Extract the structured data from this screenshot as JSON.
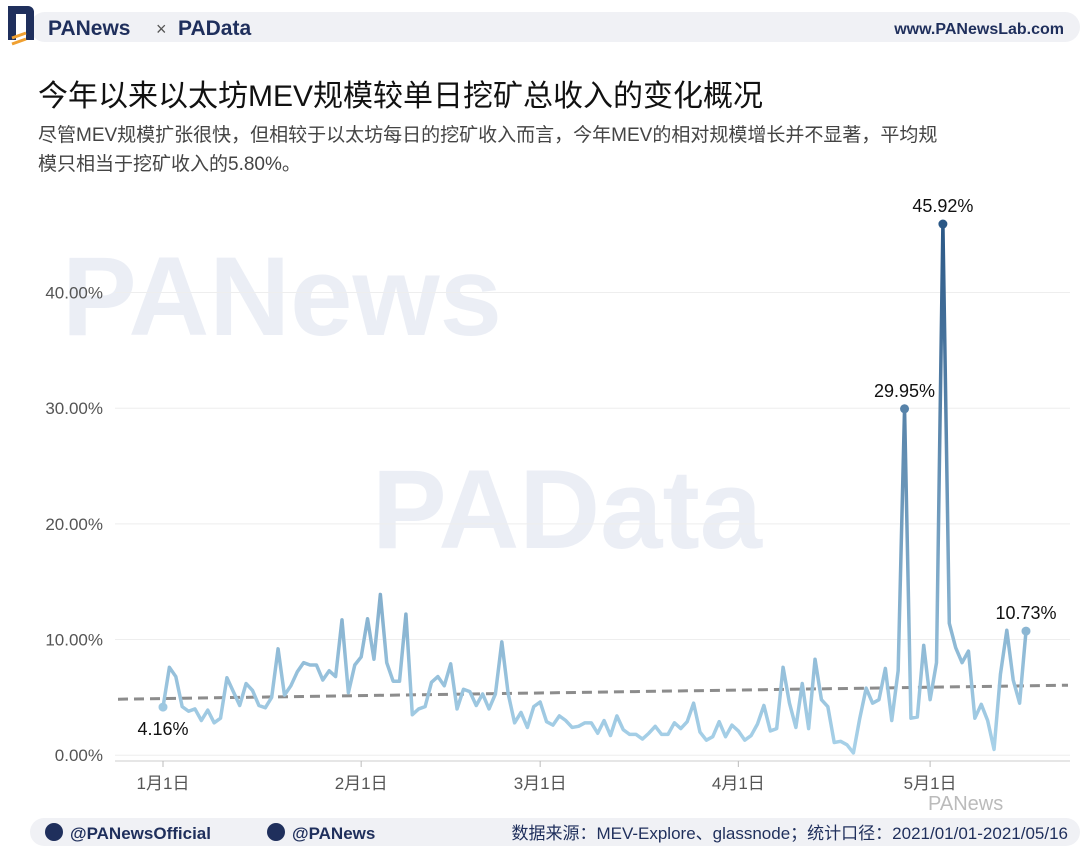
{
  "header": {
    "brand_a": "PANews",
    "times": "×",
    "brand_b": "PAData",
    "website": "www.PANewsLab.com"
  },
  "chart_data": {
    "type": "line",
    "title": "今年以来以太坊MEV规模较单日挖矿总收入的变化概况",
    "subtitle": [
      "尽管MEV规模扩张很快，但相较于以太坊每日的挖矿收入而言，今年MEV的相对规模增长并不显著，平均规",
      "模只相当于挖矿收入的5.80%。"
    ],
    "x": [
      "2021-01-01",
      "2021-01-02",
      "2021-01-03",
      "2021-01-04",
      "2021-01-05",
      "2021-01-06",
      "2021-01-07",
      "2021-01-08",
      "2021-01-09",
      "2021-01-10",
      "2021-01-11",
      "2021-01-12",
      "2021-01-13",
      "2021-01-14",
      "2021-01-15",
      "2021-01-16",
      "2021-01-17",
      "2021-01-18",
      "2021-01-19",
      "2021-01-20",
      "2021-01-21",
      "2021-01-22",
      "2021-01-23",
      "2021-01-24",
      "2021-01-25",
      "2021-01-26",
      "2021-01-27",
      "2021-01-28",
      "2021-01-29",
      "2021-01-30",
      "2021-01-31",
      "2021-02-01",
      "2021-02-02",
      "2021-02-03",
      "2021-02-04",
      "2021-02-05",
      "2021-02-06",
      "2021-02-07",
      "2021-02-08",
      "2021-02-09",
      "2021-02-10",
      "2021-02-11",
      "2021-02-12",
      "2021-02-13",
      "2021-02-14",
      "2021-02-15",
      "2021-02-16",
      "2021-02-17",
      "2021-02-18",
      "2021-02-19",
      "2021-02-20",
      "2021-02-21",
      "2021-02-22",
      "2021-02-23",
      "2021-02-24",
      "2021-02-25",
      "2021-02-26",
      "2021-02-27",
      "2021-02-28",
      "2021-03-01",
      "2021-03-02",
      "2021-03-03",
      "2021-03-04",
      "2021-03-05",
      "2021-03-06",
      "2021-03-07",
      "2021-03-08",
      "2021-03-09",
      "2021-03-10",
      "2021-03-11",
      "2021-03-12",
      "2021-03-13",
      "2021-03-14",
      "2021-03-15",
      "2021-03-16",
      "2021-03-17",
      "2021-03-18",
      "2021-03-19",
      "2021-03-20",
      "2021-03-21",
      "2021-03-22",
      "2021-03-23",
      "2021-03-24",
      "2021-03-25",
      "2021-03-26",
      "2021-03-27",
      "2021-03-28",
      "2021-03-29",
      "2021-03-30",
      "2021-03-31",
      "2021-04-01",
      "2021-04-02",
      "2021-04-03",
      "2021-04-04",
      "2021-04-05",
      "2021-04-06",
      "2021-04-07",
      "2021-04-08",
      "2021-04-09",
      "2021-04-10",
      "2021-04-11",
      "2021-04-12",
      "2021-04-13",
      "2021-04-14",
      "2021-04-15",
      "2021-04-16",
      "2021-04-17",
      "2021-04-18",
      "2021-04-19",
      "2021-04-20",
      "2021-04-21",
      "2021-04-22",
      "2021-04-23",
      "2021-04-24",
      "2021-04-25",
      "2021-04-26",
      "2021-04-27",
      "2021-04-28",
      "2021-04-29",
      "2021-04-30",
      "2021-05-01",
      "2021-05-02",
      "2021-05-03",
      "2021-05-04",
      "2021-05-05",
      "2021-05-06",
      "2021-05-07",
      "2021-05-08",
      "2021-05-09",
      "2021-05-10",
      "2021-05-11",
      "2021-05-12",
      "2021-05-13",
      "2021-05-14",
      "2021-05-15",
      "2021-05-16"
    ],
    "values": [
      4.16,
      7.6,
      6.8,
      4.2,
      3.8,
      4.0,
      3.0,
      3.9,
      2.8,
      3.2,
      6.7,
      5.5,
      4.3,
      6.2,
      5.6,
      4.3,
      4.1,
      5.0,
      9.2,
      5.2,
      6.0,
      7.2,
      8.0,
      7.8,
      7.8,
      6.5,
      7.3,
      6.8,
      11.7,
      5.4,
      7.8,
      8.5,
      11.8,
      8.3,
      13.9,
      8.0,
      6.4,
      6.4,
      12.2,
      3.5,
      4.0,
      4.2,
      6.3,
      6.8,
      6.0,
      7.9,
      4.0,
      5.7,
      5.5,
      4.3,
      5.3,
      4.0,
      5.3,
      9.8,
      5.3,
      2.8,
      3.7,
      2.4,
      4.2,
      4.6,
      2.9,
      2.6,
      3.4,
      3.0,
      2.4,
      2.5,
      2.8,
      2.8,
      1.9,
      3.0,
      1.7,
      3.4,
      2.2,
      1.8,
      1.8,
      1.4,
      1.9,
      2.5,
      1.8,
      1.8,
      2.8,
      2.3,
      2.9,
      4.5,
      2.0,
      1.3,
      1.6,
      2.9,
      1.6,
      2.6,
      2.1,
      1.3,
      1.7,
      2.7,
      4.3,
      2.1,
      2.3,
      7.6,
      4.5,
      2.4,
      6.2,
      2.3,
      8.3,
      4.8,
      4.2,
      1.1,
      1.2,
      0.9,
      0.2,
      3.2,
      5.8,
      4.5,
      4.8,
      7.5,
      3.0,
      7.3,
      29.95,
      3.2,
      3.3,
      9.5,
      4.8,
      8.0,
      45.92,
      11.4,
      9.3,
      8.0,
      9.0,
      3.2,
      4.4,
      3.0,
      0.5,
      7.0,
      10.8,
      6.5,
      4.5,
      10.73
    ],
    "value_labels": [
      "4.16%",
      null,
      null,
      null,
      null,
      null,
      null,
      null,
      null,
      null,
      null,
      null,
      null,
      null,
      null,
      null,
      null,
      null,
      null,
      null,
      null,
      null,
      null,
      null,
      null,
      null,
      null,
      null,
      null,
      null,
      null,
      null,
      null,
      null,
      null,
      null,
      null,
      null,
      null,
      null,
      null,
      null,
      null,
      null,
      null,
      null,
      null,
      null,
      null,
      null,
      null,
      null,
      null,
      null,
      null,
      null,
      null,
      null,
      null,
      null,
      null,
      null,
      null,
      null,
      null,
      null,
      null,
      null,
      null,
      null,
      null,
      null,
      null,
      null,
      null,
      null,
      null,
      null,
      null,
      null,
      null,
      null,
      null,
      null,
      null,
      null,
      null,
      null,
      null,
      null,
      null,
      null,
      null,
      null,
      null,
      null,
      null,
      null,
      null,
      null,
      null,
      null,
      null,
      null,
      null,
      null,
      null,
      null,
      null,
      null,
      null,
      null,
      null,
      null,
      null,
      null,
      "29.95%",
      null,
      null,
      null,
      null,
      null,
      "45.92%",
      null,
      null,
      null,
      null,
      null,
      null,
      null,
      null,
      null,
      null,
      null,
      null,
      "10.73%"
    ],
    "gradient": [
      "#a9d3ea",
      "#2a5786"
    ],
    "trend": {
      "color": "#8c8c8c",
      "values": [
        4.9,
        6.0
      ]
    },
    "ylim": [
      -0.5,
      48
    ],
    "yticks": [
      {
        "value": 0,
        "label": "0.00%"
      },
      {
        "value": 10,
        "label": "10.00%"
      },
      {
        "value": 20,
        "label": "20.00%"
      },
      {
        "value": 30,
        "label": "30.00%"
      },
      {
        "value": 40,
        "label": "40.00%"
      }
    ],
    "xticks": [
      {
        "value": "2021-01-01",
        "label": "1月1日"
      },
      {
        "value": "2021-02-01",
        "label": "2月1日"
      },
      {
        "value": "2021-03-01",
        "label": "3月1日"
      },
      {
        "value": "2021-04-01",
        "label": "4月1日"
      },
      {
        "value": "2021-05-01",
        "label": "5月1日"
      }
    ],
    "grid": true
  },
  "watermarks": [
    "PANews",
    "PAData",
    "PANews"
  ],
  "footer": {
    "twitter": "@PANewsOfficial",
    "weibo": "@PANews",
    "source": "数据来源：MEV-Explore、glassnode；统计口径：2021/01/01-2021/05/16"
  }
}
